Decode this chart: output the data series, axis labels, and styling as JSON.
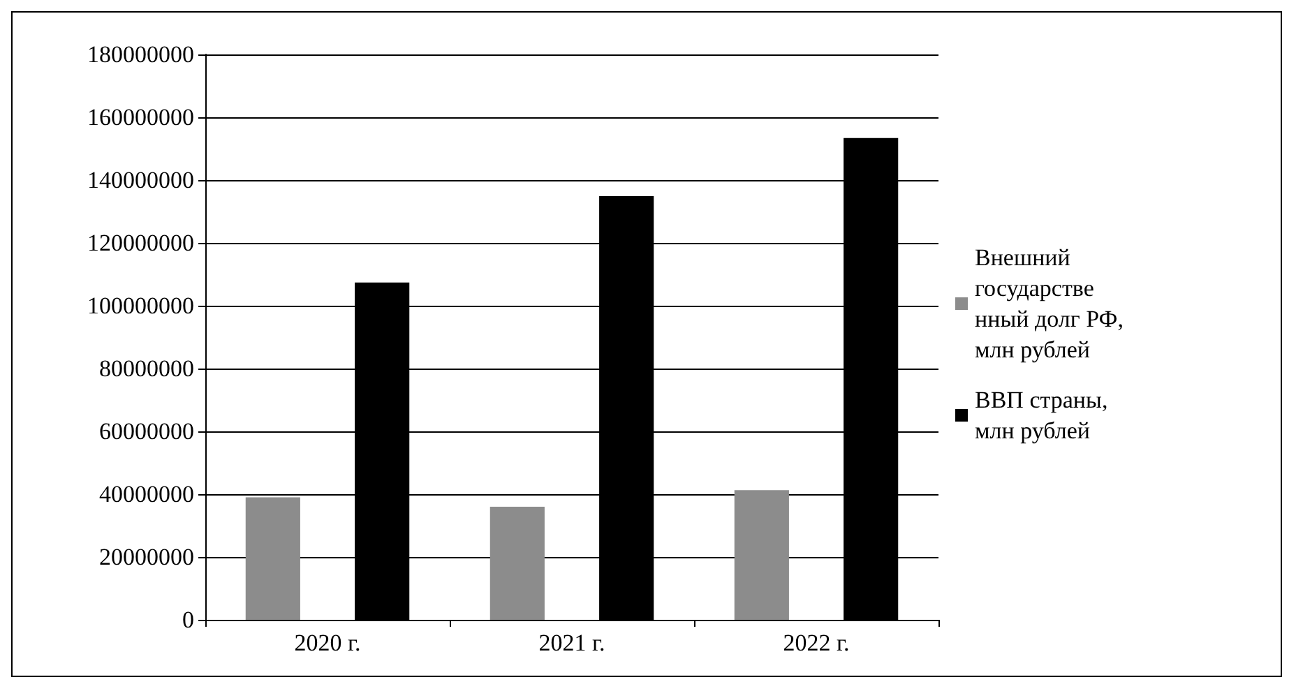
{
  "chart_data": {
    "type": "bar",
    "categories": [
      "2020 г.",
      "2021 г.",
      "2022 г."
    ],
    "series": [
      {
        "name": "Внешний государственный долг РФ, млн рублей",
        "color": "#8c8c8c",
        "values": [
          39000000,
          36000000,
          41300000
        ]
      },
      {
        "name": "ВВП страны, млн рублей",
        "color": "#000000",
        "values": [
          107400000,
          134900000,
          153400000
        ]
      }
    ],
    "ylim": [
      0,
      180000000
    ],
    "yticks": [
      0,
      20000000,
      40000000,
      60000000,
      80000000,
      100000000,
      120000000,
      140000000,
      160000000,
      180000000
    ],
    "grid": "y",
    "legend": "right"
  }
}
